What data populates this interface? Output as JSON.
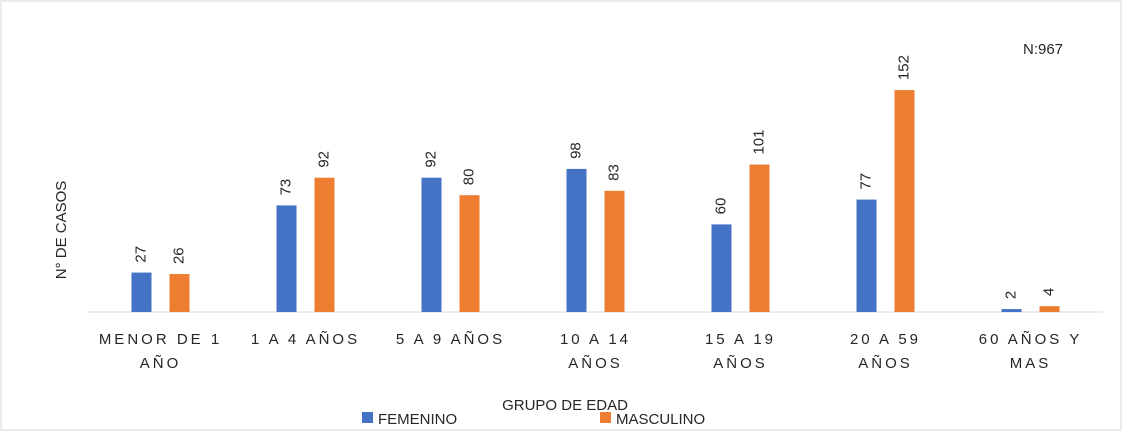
{
  "chart_data": {
    "type": "bar",
    "x_label": "GRUPO DE EDAD",
    "y_label": "N° DE CASOS",
    "annotation": "N:967",
    "categories": [
      "MENOR DE 1 AÑO",
      "1 A 4 AÑOS",
      "5 A 9 AÑOS",
      "10 A 14 AÑOS",
      "15 A 19 AÑOS",
      "20 A 59 AÑOS",
      "60 AÑOS Y MAS"
    ],
    "series": [
      {
        "name": "FEMENINO",
        "color": "#4472c4",
        "values": [
          27,
          73,
          92,
          98,
          60,
          77,
          2
        ]
      },
      {
        "name": "MASCULINO",
        "color": "#ed7d31",
        "values": [
          26,
          92,
          80,
          83,
          101,
          152,
          4
        ]
      }
    ],
    "ylim": [
      0,
      200
    ]
  }
}
